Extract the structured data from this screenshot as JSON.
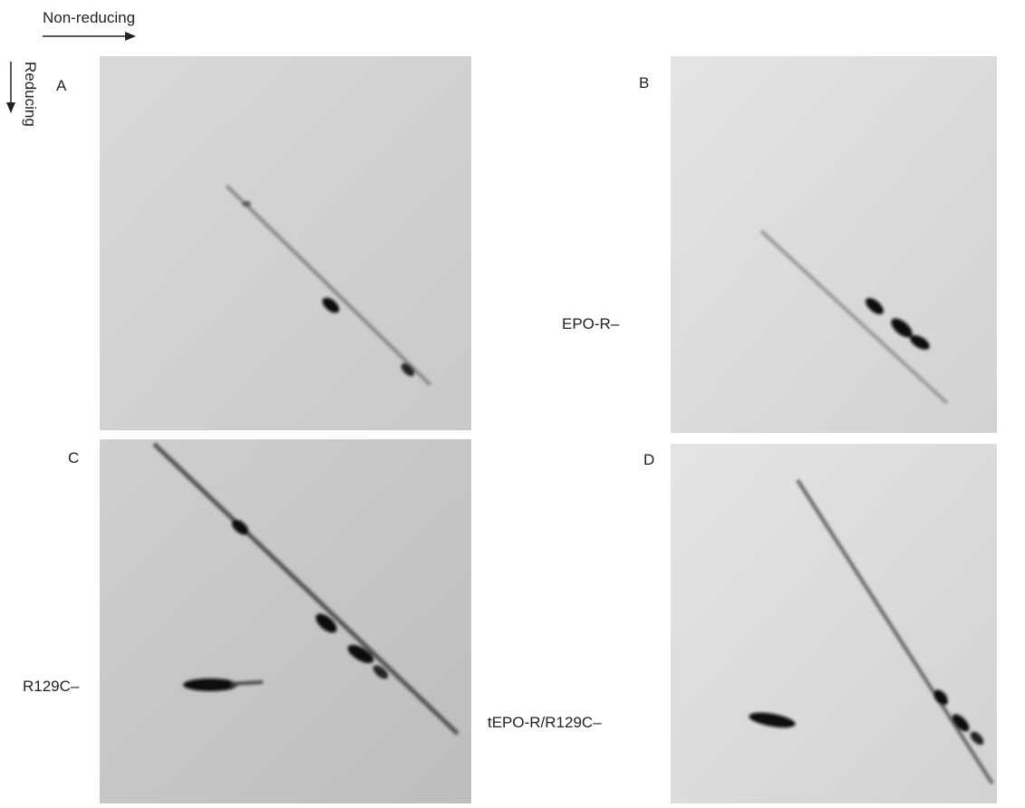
{
  "axes": {
    "horizontal": "Non-reducing",
    "vertical": "Reducing"
  },
  "panels": [
    {
      "label": "A"
    },
    {
      "label": "B",
      "marker": "EPO-R–"
    },
    {
      "label": "C",
      "marker": "R129C–"
    },
    {
      "label": "D",
      "marker": "tEPO-R/R129C–"
    }
  ]
}
